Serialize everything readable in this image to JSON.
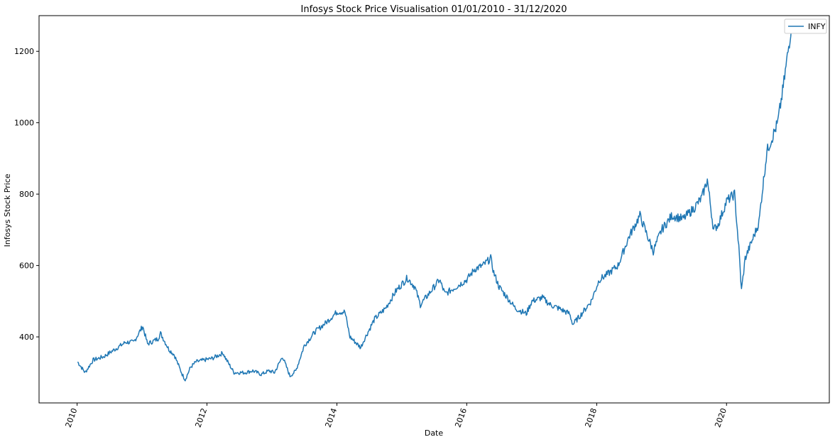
{
  "chart_data": {
    "type": "line",
    "title": "Infosys Stock Price Visualisation 01/01/2010 - 31/12/2020",
    "xlabel": "Date",
    "ylabel": "Infosys Stock Price",
    "xlim": [
      "2009-06-01",
      "2021-08-01"
    ],
    "ylim": [
      215,
      1300
    ],
    "x_ticks": [
      "2010",
      "2012",
      "2014",
      "2016",
      "2018",
      "2020"
    ],
    "y_ticks": [
      400,
      600,
      800,
      1000,
      1200
    ],
    "grid": false,
    "legend": "top-right",
    "series": [
      {
        "name": "INFY",
        "color": "#1f77b4",
        "x": [
          "2010-01-04",
          "2010-02-15",
          "2010-04-01",
          "2010-06-01",
          "2010-08-01",
          "2010-10-01",
          "2010-11-15",
          "2011-01-05",
          "2011-02-01",
          "2011-04-01",
          "2011-04-15",
          "2011-06-01",
          "2011-07-01",
          "2011-08-15",
          "2011-09-01",
          "2011-10-01",
          "2011-11-01",
          "2011-12-15",
          "2012-02-01",
          "2012-04-01",
          "2012-04-15",
          "2012-06-01",
          "2012-08-01",
          "2012-09-15",
          "2012-11-01",
          "2012-12-15",
          "2013-01-15",
          "2013-03-01",
          "2013-04-12",
          "2013-05-15",
          "2013-07-01",
          "2013-09-01",
          "2013-11-01",
          "2014-01-01",
          "2014-02-15",
          "2014-03-15",
          "2014-04-15",
          "2014-05-15",
          "2014-06-01",
          "2014-08-01",
          "2014-10-01",
          "2014-12-01",
          "2015-02-01",
          "2015-03-15",
          "2015-04-15",
          "2015-06-01",
          "2015-08-01",
          "2015-09-01",
          "2015-11-01",
          "2016-01-01",
          "2016-02-15",
          "2016-04-01",
          "2016-05-15",
          "2016-06-01",
          "2016-07-01",
          "2016-08-01",
          "2016-10-01",
          "2016-12-01",
          "2017-01-01",
          "2017-03-01",
          "2017-04-15",
          "2017-06-01",
          "2017-08-01",
          "2017-08-20",
          "2017-10-01",
          "2017-12-01",
          "2018-01-15",
          "2018-03-01",
          "2018-05-01",
          "2018-07-01",
          "2018-09-01",
          "2018-10-15",
          "2018-11-15",
          "2019-01-01",
          "2019-03-01",
          "2019-05-01",
          "2019-07-01",
          "2019-08-15",
          "2019-09-15",
          "2019-10-20",
          "2019-11-15",
          "2020-01-01",
          "2020-02-15",
          "2020-03-10",
          "2020-03-25",
          "2020-04-15",
          "2020-06-01",
          "2020-07-01",
          "2020-07-16",
          "2020-08-15",
          "2020-09-15",
          "2020-10-15",
          "2020-11-15",
          "2020-12-31"
        ],
        "values": [
          330,
          300,
          335,
          345,
          365,
          385,
          385,
          430,
          380,
          395,
          410,
          365,
          350,
          295,
          280,
          315,
          330,
          335,
          340,
          355,
          340,
          300,
          300,
          305,
          295,
          305,
          300,
          345,
          290,
          305,
          375,
          415,
          440,
          470,
          470,
          400,
          385,
          370,
          390,
          450,
          480,
          530,
          565,
          540,
          490,
          520,
          560,
          520,
          540,
          560,
          590,
          600,
          620,
          580,
          540,
          520,
          480,
          465,
          500,
          510,
          490,
          480,
          465,
          435,
          460,
          500,
          560,
          575,
          600,
          680,
          740,
          680,
          640,
          700,
          740,
          730,
          760,
          790,
          840,
          700,
          715,
          780,
          800,
          650,
          530,
          620,
          680,
          720,
          790,
          920,
          960,
          1000,
          1100,
          1270
        ]
      }
    ]
  }
}
